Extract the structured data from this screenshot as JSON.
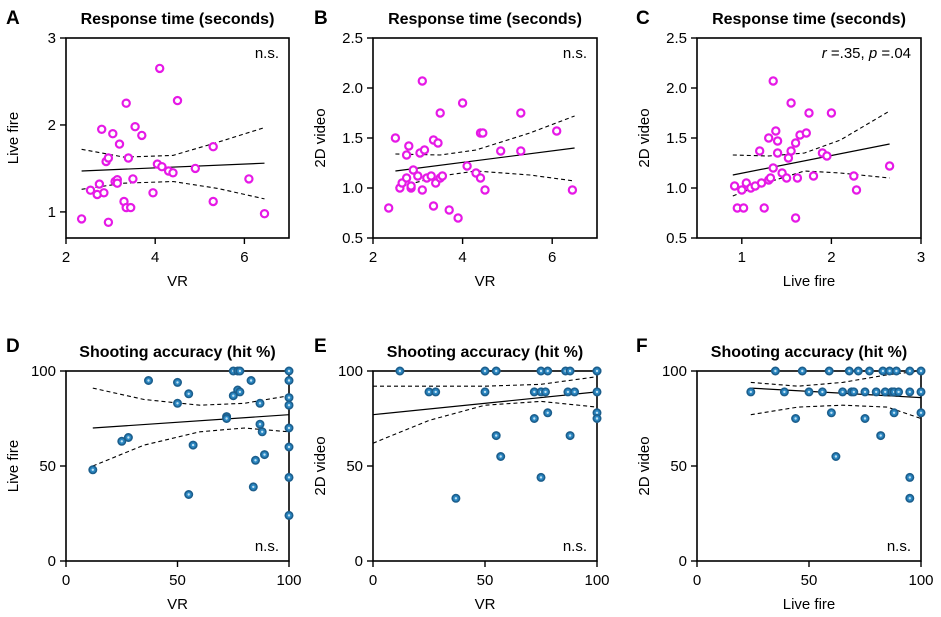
{
  "chart_data": [
    {
      "type": "scatter",
      "panel_letter": "A",
      "title": "Response time (seconds)",
      "xlabel": "VR",
      "ylabel": "Live fire",
      "xlim": [
        2,
        7
      ],
      "ylim": [
        0.7,
        3
      ],
      "xticks": [
        2,
        4,
        6
      ],
      "yticks": [
        1,
        2,
        3
      ],
      "annotation": "n.s.",
      "marker_color": "#e619e6",
      "marker_style": "hollow",
      "fit": {
        "x": [
          2.35,
          6.45
        ],
        "y": [
          1.47,
          1.56
        ]
      },
      "ci_upper": {
        "x": [
          2.35,
          3.3,
          4.4,
          5.4,
          6.45
        ],
        "y": [
          1.72,
          1.63,
          1.65,
          1.8,
          1.97
        ]
      },
      "ci_lower": {
        "x": [
          2.35,
          3.3,
          4.4,
          5.4,
          6.45
        ],
        "y": [
          1.26,
          1.33,
          1.35,
          1.27,
          1.15
        ]
      },
      "points": {
        "x": [
          2.35,
          2.55,
          2.7,
          2.8,
          2.9,
          2.95,
          2.95,
          3.05,
          3.1,
          3.15,
          3.15,
          2.75,
          3.2,
          2.85,
          3.3,
          3.35,
          3.35,
          3.4,
          3.45,
          3.5,
          3.55,
          3.7,
          3.95,
          4.05,
          4.1,
          4.15,
          4.3,
          4.4,
          4.5,
          4.9,
          5.3,
          5.3,
          6.1,
          6.45
        ],
        "y": [
          0.92,
          1.25,
          1.2,
          1.95,
          1.58,
          1.62,
          0.88,
          1.9,
          1.35,
          1.37,
          1.33,
          1.32,
          1.78,
          1.22,
          1.12,
          1.05,
          2.25,
          1.62,
          1.05,
          1.38,
          1.98,
          1.88,
          1.22,
          1.55,
          2.65,
          1.52,
          1.47,
          1.45,
          2.28,
          1.5,
          1.75,
          1.12,
          1.38,
          0.98
        ]
      }
    },
    {
      "type": "scatter",
      "panel_letter": "B",
      "title": "Response time (seconds)",
      "xlabel": "VR",
      "ylabel": "2D video",
      "xlim": [
        2,
        7
      ],
      "ylim": [
        0.5,
        2.5
      ],
      "xticks": [
        2,
        4,
        6
      ],
      "yticks": [
        0.5,
        1.0,
        1.5,
        2.0,
        2.5
      ],
      "annotation": "n.s.",
      "marker_color": "#e619e6",
      "marker_style": "hollow",
      "fit": {
        "x": [
          2.5,
          6.5
        ],
        "y": [
          1.17,
          1.4
        ]
      },
      "ci_upper": {
        "x": [
          2.5,
          3.5,
          4.3,
          5.5,
          6.5
        ],
        "y": [
          1.34,
          1.33,
          1.38,
          1.55,
          1.72
        ]
      },
      "ci_lower": {
        "x": [
          2.5,
          3.5,
          4.3,
          5.5,
          6.5
        ],
        "y": [
          1.0,
          1.12,
          1.17,
          1.13,
          1.07
        ]
      },
      "points": {
        "x": [
          2.35,
          2.5,
          2.6,
          2.65,
          2.75,
          2.75,
          2.8,
          2.85,
          2.85,
          2.9,
          3.0,
          3.05,
          3.1,
          3.1,
          3.15,
          3.2,
          3.3,
          3.35,
          3.35,
          3.4,
          3.45,
          3.5,
          3.5,
          3.55,
          3.7,
          3.9,
          4.0,
          4.1,
          4.3,
          4.4,
          4.4,
          4.45,
          4.5,
          4.85,
          5.3,
          5.3,
          6.1,
          6.45
        ],
        "y": [
          0.8,
          1.5,
          1.0,
          1.05,
          1.1,
          1.33,
          1.42,
          1.0,
          1.02,
          1.18,
          1.12,
          1.35,
          0.98,
          2.07,
          1.38,
          1.1,
          1.12,
          1.48,
          0.82,
          1.05,
          1.45,
          1.75,
          1.1,
          1.12,
          0.78,
          0.7,
          1.85,
          1.22,
          1.15,
          1.1,
          1.55,
          1.55,
          0.98,
          1.37,
          1.75,
          1.37,
          1.57,
          0.98
        ]
      }
    },
    {
      "type": "scatter",
      "panel_letter": "C",
      "title": "Response time (seconds)",
      "xlabel": "Live fire",
      "ylabel": "2D video",
      "xlim": [
        0.5,
        3
      ],
      "ylim": [
        0.5,
        2.5
      ],
      "xticks": [
        1,
        2,
        3
      ],
      "yticks": [
        0.5,
        1.0,
        1.5,
        2.0,
        2.5
      ],
      "annotation_parts": [
        "r",
        " =.35, ",
        "p",
        " =.04"
      ],
      "marker_color": "#e619e6",
      "marker_style": "hollow",
      "fit": {
        "x": [
          0.9,
          2.65
        ],
        "y": [
          1.13,
          1.44
        ]
      },
      "ci_upper": {
        "x": [
          0.9,
          1.3,
          1.7,
          2.1,
          2.65
        ],
        "y": [
          1.33,
          1.32,
          1.35,
          1.48,
          1.77
        ]
      },
      "ci_lower": {
        "x": [
          0.9,
          1.3,
          1.7,
          2.1,
          2.65
        ],
        "y": [
          0.92,
          1.06,
          1.17,
          1.15,
          1.1
        ]
      },
      "points": {
        "x": [
          0.92,
          0.95,
          1.0,
          1.02,
          1.05,
          1.1,
          1.15,
          1.2,
          1.22,
          1.25,
          1.3,
          1.3,
          1.32,
          1.35,
          1.35,
          1.38,
          1.4,
          1.4,
          1.45,
          1.5,
          1.52,
          1.55,
          1.55,
          1.6,
          1.6,
          1.62,
          1.65,
          1.72,
          1.75,
          1.8,
          1.9,
          1.95,
          2.0,
          2.25,
          2.28,
          2.65
        ],
        "y": [
          1.02,
          0.8,
          0.98,
          0.8,
          1.05,
          1.0,
          1.02,
          1.37,
          1.05,
          0.8,
          1.5,
          1.08,
          1.1,
          1.2,
          2.07,
          1.57,
          1.35,
          1.47,
          1.15,
          1.1,
          1.3,
          1.85,
          1.37,
          0.7,
          1.45,
          1.1,
          1.53,
          1.55,
          1.75,
          1.12,
          1.35,
          1.32,
          1.75,
          1.12,
          0.98,
          1.22
        ]
      }
    },
    {
      "type": "scatter",
      "panel_letter": "D",
      "title": "Shooting accuracy (hit %)",
      "xlabel": "VR",
      "ylabel": "Live fire",
      "xlim": [
        0,
        100
      ],
      "ylim": [
        0,
        100
      ],
      "xticks": [
        0,
        50,
        100
      ],
      "yticks": [
        0,
        50,
        100
      ],
      "annotation": "n.s.",
      "marker_color": "#2a86c1",
      "marker_style": "filled",
      "fit": {
        "x": [
          12,
          100
        ],
        "y": [
          70,
          77
        ]
      },
      "ci_upper": {
        "x": [
          12,
          35,
          60,
          80,
          100
        ],
        "y": [
          91,
          85,
          82,
          83,
          87
        ]
      },
      "ci_lower": {
        "x": [
          12,
          35,
          60,
          80,
          100
        ],
        "y": [
          50,
          61,
          68,
          70,
          68
        ]
      },
      "points": {
        "x": [
          12,
          25,
          28,
          37,
          50,
          50,
          55,
          55,
          57,
          72,
          72,
          75,
          75,
          77,
          77,
          78,
          78,
          83,
          84,
          85,
          87,
          87,
          88,
          89,
          100,
          100,
          100,
          100,
          100,
          100,
          100,
          100
        ],
        "y": [
          48,
          63,
          65,
          95,
          94,
          83,
          88,
          35,
          61,
          76,
          75,
          87,
          100,
          100,
          90,
          89,
          100,
          95,
          39,
          53,
          83,
          72,
          68,
          56,
          100,
          95,
          86,
          82,
          70,
          60,
          44,
          24
        ]
      }
    },
    {
      "type": "scatter",
      "panel_letter": "E",
      "title": "Shooting accuracy (hit %)",
      "xlabel": "VR",
      "ylabel": "2D video",
      "xlim": [
        0,
        100
      ],
      "ylim": [
        0,
        100
      ],
      "xticks": [
        0,
        50,
        100
      ],
      "yticks": [
        0,
        50,
        100
      ],
      "annotation": "n.s.",
      "marker_color": "#2a86c1",
      "marker_style": "filled",
      "fit": {
        "x": [
          0,
          100
        ],
        "y": [
          77,
          89
        ]
      },
      "ci_upper": {
        "x": [
          0,
          25,
          50,
          75,
          100
        ],
        "y": [
          92,
          92,
          92,
          93,
          97
        ]
      },
      "ci_lower": {
        "x": [
          0,
          25,
          50,
          75,
          100
        ],
        "y": [
          62,
          74,
          82,
          84,
          81
        ]
      },
      "points": {
        "x": [
          12,
          25,
          28,
          37,
          50,
          50,
          55,
          55,
          57,
          72,
          72,
          75,
          75,
          75,
          77,
          78,
          78,
          86,
          87,
          88,
          88,
          90,
          100,
          100,
          100,
          100,
          100
        ],
        "y": [
          100,
          89,
          89,
          33,
          100,
          89,
          100,
          66,
          55,
          75,
          89,
          89,
          44,
          100,
          89,
          100,
          78,
          100,
          89,
          100,
          66,
          89,
          100,
          89,
          78,
          75,
          100
        ]
      }
    },
    {
      "type": "scatter",
      "panel_letter": "F",
      "title": "Shooting accuracy (hit %)",
      "xlabel": "Live fire",
      "ylabel": "2D video",
      "xlim": [
        0,
        100
      ],
      "ylim": [
        0,
        100
      ],
      "xticks": [
        0,
        50,
        100
      ],
      "yticks": [
        0,
        50,
        100
      ],
      "annotation": "n.s.",
      "marker_color": "#2a86c1",
      "marker_style": "filled",
      "fit": {
        "x": [
          24,
          100
        ],
        "y": [
          91,
          86
        ]
      },
      "ci_upper": {
        "x": [
          24,
          45,
          65,
          85,
          100
        ],
        "y": [
          94,
          92,
          94,
          98,
          100
        ]
      },
      "ci_lower": {
        "x": [
          24,
          45,
          65,
          85,
          100
        ],
        "y": [
          77,
          81,
          82,
          81,
          75
        ]
      },
      "points": {
        "x": [
          24,
          35,
          39,
          44,
          47,
          50,
          56,
          59,
          60,
          62,
          65,
          68,
          69,
          70,
          72,
          75,
          75,
          77,
          80,
          82,
          83,
          84,
          86,
          87,
          88,
          88,
          89,
          90,
          95,
          95,
          95,
          95,
          100,
          100,
          100
        ],
        "y": [
          89,
          100,
          89,
          75,
          100,
          89,
          89,
          100,
          78,
          55,
          89,
          100,
          89,
          89,
          100,
          89,
          75,
          100,
          89,
          66,
          100,
          89,
          100,
          89,
          89,
          78,
          100,
          89,
          100,
          89,
          44,
          33,
          100,
          89,
          78
        ]
      }
    }
  ]
}
